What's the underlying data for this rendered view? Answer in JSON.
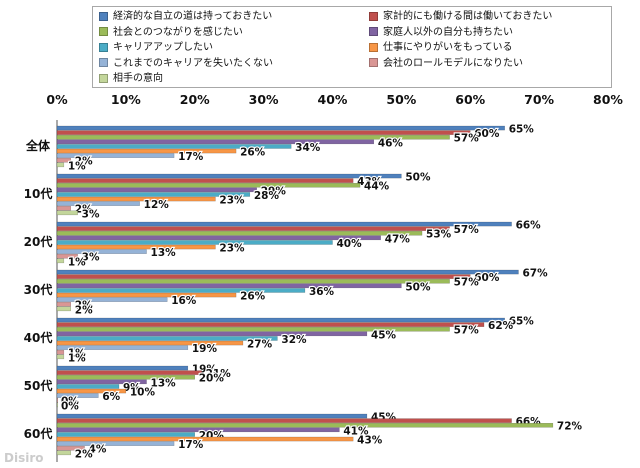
{
  "chart_data": {
    "type": "bar",
    "orientation": "horizontal",
    "xlim": [
      0,
      80
    ],
    "x_ticks": [
      "0%",
      "10%",
      "20%",
      "30%",
      "40%",
      "50%",
      "60%",
      "70%",
      "80%"
    ],
    "categories": [
      "全体",
      "10代",
      "20代",
      "30代",
      "40代",
      "50代",
      "60代"
    ],
    "legend_position": "top",
    "series": [
      {
        "name": "経済的な自立の道は持っておきたい",
        "color": "#4f81bd",
        "values": [
          65,
          50,
          66,
          67,
          65,
          19,
          45
        ]
      },
      {
        "name": "家計的にも働ける間は働いておきたい",
        "color": "#c0504d",
        "values": [
          60,
          43,
          57,
          60,
          62,
          21,
          66
        ]
      },
      {
        "name": "社会とのつながりを感じたい",
        "color": "#9bbb59",
        "values": [
          57,
          44,
          53,
          57,
          57,
          20,
          72
        ]
      },
      {
        "name": "家庭人以外の自分も持ちたい",
        "color": "#8064a2",
        "values": [
          46,
          29,
          47,
          50,
          45,
          13,
          41
        ]
      },
      {
        "name": "キャリアアップしたい",
        "color": "#4bacc6",
        "values": [
          34,
          28,
          40,
          36,
          32,
          9,
          20
        ]
      },
      {
        "name": "仕事にやりがいをもっている",
        "color": "#f79646",
        "values": [
          26,
          23,
          23,
          26,
          27,
          10,
          43
        ]
      },
      {
        "name": "これまでのキャリアを失いたくない",
        "color": "#95b3d7",
        "values": [
          17,
          12,
          13,
          16,
          19,
          6,
          17
        ]
      },
      {
        "name": "会社のロールモデルになりたい",
        "color": "#d99694",
        "values": [
          2,
          2,
          3,
          2,
          1,
          0,
          4
        ]
      },
      {
        "name": "相手の意向",
        "color": "#c3d69b",
        "values": [
          1,
          3,
          1,
          2,
          1,
          0,
          2
        ]
      }
    ],
    "label_suffix": "%",
    "watermark": "Disiro"
  }
}
